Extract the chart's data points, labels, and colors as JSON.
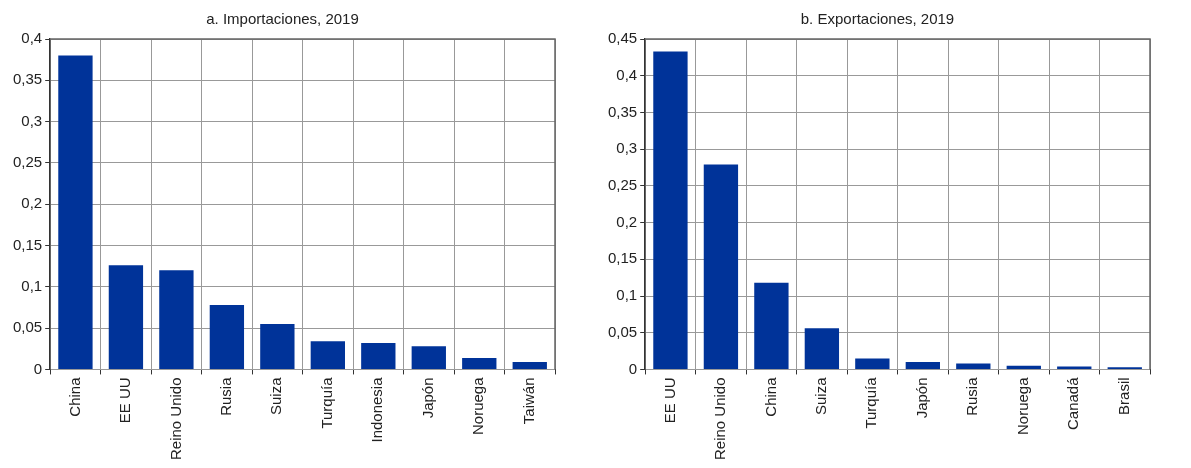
{
  "chart_data": [
    {
      "type": "bar",
      "title": "a. Importaciones, 2019",
      "categories": [
        "China",
        "EE UU",
        "Reino Unido",
        "Rusia",
        "Suiza",
        "Turquía",
        "Indonesia",
        "Japón",
        "Noruega",
        "Taiwán"
      ],
      "values": [
        0.38,
        0.126,
        0.12,
        0.078,
        0.055,
        0.034,
        0.032,
        0.028,
        0.014,
        0.009
      ],
      "color": "#003399",
      "ylim": [
        0,
        0.4
      ],
      "yticks": [
        {
          "value": 0,
          "label": "0"
        },
        {
          "value": 0.05,
          "label": "0,05"
        },
        {
          "value": 0.1,
          "label": "0,1"
        },
        {
          "value": 0.15,
          "label": "0,15"
        },
        {
          "value": 0.2,
          "label": "0,2"
        },
        {
          "value": 0.25,
          "label": "0,25"
        },
        {
          "value": 0.3,
          "label": "0,3"
        },
        {
          "value": 0.35,
          "label": "0,35"
        },
        {
          "value": 0.4,
          "label": "0,4"
        }
      ],
      "grid": true
    },
    {
      "type": "bar",
      "title": "b. Exportaciones, 2019",
      "categories": [
        "EE UU",
        "Reino Unido",
        "China",
        "Suiza",
        "Turquía",
        "Japón",
        "Rusia",
        "Noruega",
        "Canadá",
        "Brasil"
      ],
      "values": [
        0.433,
        0.279,
        0.118,
        0.056,
        0.015,
        0.01,
        0.008,
        0.005,
        0.004,
        0.003
      ],
      "color": "#003399",
      "ylim": [
        0,
        0.45
      ],
      "yticks": [
        {
          "value": 0,
          "label": "0"
        },
        {
          "value": 0.05,
          "label": "0,05"
        },
        {
          "value": 0.1,
          "label": "0,1"
        },
        {
          "value": 0.15,
          "label": "0,15"
        },
        {
          "value": 0.2,
          "label": "0,2"
        },
        {
          "value": 0.25,
          "label": "0,25"
        },
        {
          "value": 0.3,
          "label": "0,3"
        },
        {
          "value": 0.35,
          "label": "0,35"
        },
        {
          "value": 0.4,
          "label": "0,4"
        },
        {
          "value": 0.45,
          "label": "0,45"
        }
      ],
      "grid": true
    }
  ]
}
